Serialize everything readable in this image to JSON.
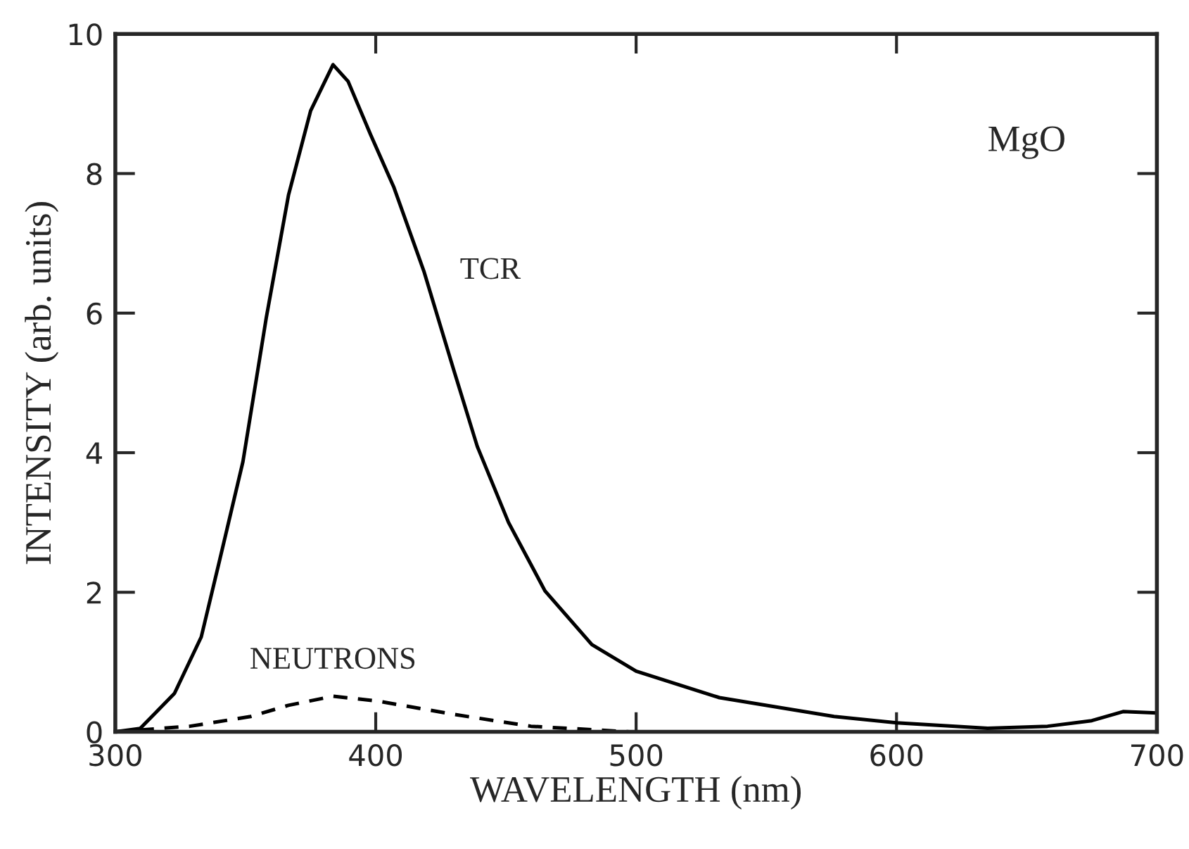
{
  "chart_data": {
    "type": "line",
    "xlabel": "WAVELENGTH (nm)",
    "ylabel": "INTENSITY (arb. units)",
    "xlim": [
      300,
      700
    ],
    "xticks": [
      300,
      400,
      500,
      600,
      700
    ],
    "ylim": [
      0,
      10
    ],
    "yticks": [
      0,
      2,
      4,
      6,
      8,
      10
    ],
    "grid": false,
    "legend": false,
    "series": [
      {
        "name": "TCR",
        "color": "#000000",
        "line_style": "solid",
        "x": [
          300,
          309.6,
          322.7,
          333,
          340,
          349,
          358,
          366.5,
          375,
          383.6,
          389.4,
          398,
          407,
          418.5,
          430,
          439,
          451,
          465,
          483,
          500,
          532,
          576,
          600,
          635,
          658,
          675,
          687,
          700
        ],
        "values": [
          0,
          0.05,
          0.55,
          1.36,
          2.45,
          3.87,
          5.94,
          7.69,
          8.9,
          9.56,
          9.32,
          8.56,
          7.8,
          6.6,
          5.18,
          4.09,
          3.0,
          2.02,
          1.25,
          0.87,
          0.49,
          0.22,
          0.13,
          0.05,
          0.08,
          0.16,
          0.29,
          0.27
        ]
      },
      {
        "name": "NEUTRONS",
        "color": "#000000",
        "line_style": "dashed",
        "x": [
          300,
          328.6,
          352,
          366.5,
          383.6,
          401,
          430,
          459.6,
          497.5,
          547,
          700
        ],
        "values": [
          0,
          0.08,
          0.22,
          0.38,
          0.51,
          0.44,
          0.25,
          0.08,
          0,
          0,
          0
        ]
      }
    ],
    "annotations": [
      "MgO"
    ]
  }
}
